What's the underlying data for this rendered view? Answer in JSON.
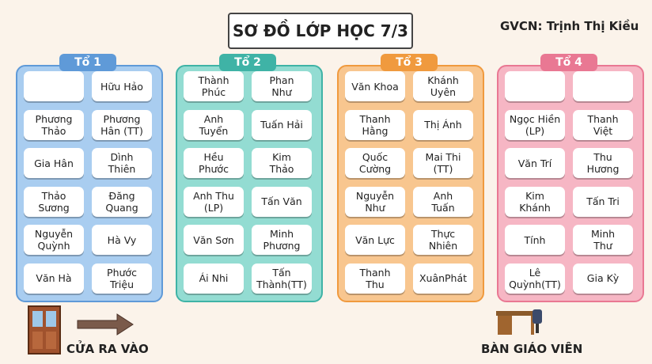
{
  "header": {
    "title": "SƠ ĐỒ LỚP HỌC 7/3",
    "teacher": "GVCN: Trịnh Thị Kiều"
  },
  "groups": [
    {
      "label": "Tổ 1",
      "color": "#a9cdf0",
      "accent": "#5f9ad8",
      "seats": [
        [
          null,
          "Hữu Hảo"
        ],
        [
          "Phương\nThảo",
          "Phương\nHân (TT)"
        ],
        [
          "Gia Hân",
          "Dình\nThiên"
        ],
        [
          "Thảo\nSương",
          "Đăng\nQuang"
        ],
        [
          "Nguyễn\nQuỳnh",
          "Hà Vy"
        ],
        [
          "Văn Hà",
          "Phước\nTriệu"
        ]
      ]
    },
    {
      "label": "Tổ 2",
      "color": "#93dcd2",
      "accent": "#3fb3a6",
      "seats": [
        [
          "Thành\nPhúc",
          "Phan\nNhư"
        ],
        [
          "Anh\nTuyển",
          "Tuấn Hải"
        ],
        [
          "Hều\nPhước",
          "Kim\nThảo"
        ],
        [
          "Anh Thu\n(LP)",
          "Tấn Văn"
        ],
        [
          "Văn Sơn",
          "Minh\nPhương"
        ],
        [
          "Ái Nhi",
          "Tấn\nThành(TT)"
        ]
      ]
    },
    {
      "label": "Tổ 3",
      "color": "#f8c68f",
      "accent": "#f09a3e",
      "seats": [
        [
          "Văn Khoa",
          "Khánh\nUyên"
        ],
        [
          "Thanh\nHằng",
          "Thị Ánh"
        ],
        [
          "Quốc\nCường",
          "Mai Thi\n(TT)"
        ],
        [
          "Nguyễn\nNhư",
          "Anh\nTuấn"
        ],
        [
          "Văn Lực",
          "Thực\nNhiên"
        ],
        [
          "Thanh\nThu",
          "XuânPhát"
        ]
      ]
    },
    {
      "label": "Tổ 4",
      "color": "#f6b6c4",
      "accent": "#e97893",
      "seats": [
        [
          null,
          null
        ],
        [
          "Ngọc Hiền\n(LP)",
          "Thanh\nViệt"
        ],
        [
          "Văn Trí",
          "Thu\nHương"
        ],
        [
          "Kim\nKhánh",
          "Tấn Tri"
        ],
        [
          "Tính",
          "Minh\nThư"
        ],
        [
          "Lê\nQuỳnh(TT)",
          "Gia Kỳ"
        ]
      ]
    }
  ],
  "footer": {
    "door": "CỬA RA VÀO",
    "desk": "BÀN GIÁO VIÊN"
  }
}
